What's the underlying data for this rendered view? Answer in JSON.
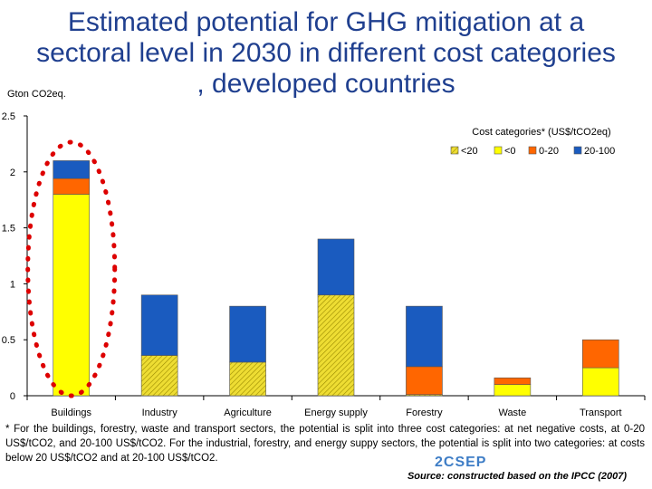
{
  "slide": {
    "title": "Estimated potential for GHG mitigation at a sectoral level in 2030 in different cost categories , developed countries",
    "footnote": "* For the buildings, forestry, waste and transport sectors, the potential is split into three cost categories: at net negative costs, at 0-20 US$/tCO2, and 20-100 US$/tCO2. For the industrial, forestry, and energy suppy sectors, the potential is split into two categories: at costs below 20 US$/tCO2 and at 20-100 US$/tCO2.",
    "source": "Source: constructed based on the IPCC (2007)",
    "logo_text": "2CSEP"
  },
  "chart_data": {
    "type": "bar",
    "stacked": true,
    "y_unit_label": "Gton CO2eq.",
    "ylim": [
      0,
      2.5
    ],
    "yticks": [
      "0",
      "0.5",
      "1",
      "1.5",
      "2",
      "2.5"
    ],
    "grid": false,
    "categories": [
      "Buildings",
      "Industry",
      "Agriculture",
      "Energy supply",
      "Forestry",
      "Waste",
      "Transport"
    ],
    "series": [
      {
        "name": "<20",
        "color": "#d8c200",
        "pattern": "hatched",
        "values": [
          0,
          0.36,
          0.3,
          0.9,
          0.01,
          0,
          0
        ]
      },
      {
        "name": "<0",
        "color": "#ffff00",
        "values": [
          1.8,
          0,
          0,
          0,
          0,
          0.1,
          0.25
        ]
      },
      {
        "name": "0-20",
        "color": "#ff6600",
        "values": [
          0.14,
          0,
          0,
          0,
          0.25,
          0.06,
          0.25
        ]
      },
      {
        "name": "20-100",
        "color": "#1a5bbf",
        "values": [
          0.16,
          0.54,
          0.5,
          0.5,
          0.54,
          0,
          0
        ]
      }
    ],
    "legend": {
      "title": "Cost categories* (US$/tCO2eq)",
      "position": "top-right"
    },
    "annotation": {
      "type": "dotted-ellipse",
      "target": "Buildings",
      "color": "#dd0000"
    }
  }
}
